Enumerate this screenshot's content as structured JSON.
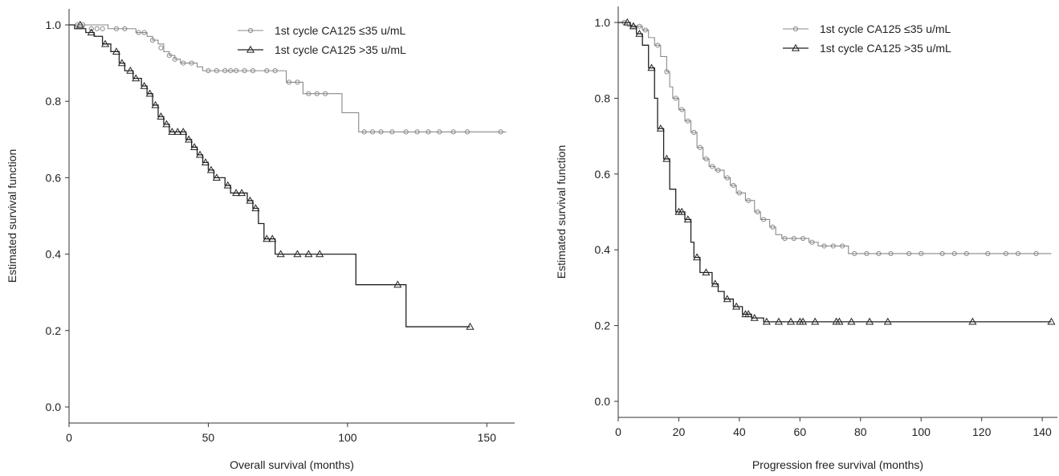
{
  "chart_data": [
    {
      "type": "line",
      "subtype": "kaplan-meier",
      "title": "",
      "xlabel": "Overall survival (months)",
      "ylabel": "Estimated survival function",
      "xlim": [
        0,
        160
      ],
      "ylim": [
        0,
        1.0
      ],
      "xticks": [
        0,
        50,
        100,
        150
      ],
      "yticks": [
        0.0,
        0.2,
        0.4,
        0.6,
        0.8,
        1.0
      ],
      "xtick_labels": [
        "0",
        "50",
        "100",
        "150"
      ],
      "ytick_labels": [
        "0.0",
        "0.2",
        "0.4",
        "0.6",
        "0.8",
        "1.0"
      ],
      "grid": false,
      "legend_position": "top-right",
      "series": [
        {
          "name": "1st cycle CA125 ≤35 u/mL",
          "marker": "circle",
          "steps": [
            [
              0,
              1.0
            ],
            [
              14,
              1.0
            ],
            [
              14,
              0.99
            ],
            [
              24,
              0.99
            ],
            [
              24,
              0.98
            ],
            [
              28,
              0.98
            ],
            [
              28,
              0.97
            ],
            [
              30,
              0.96
            ],
            [
              32,
              0.95
            ],
            [
              34,
              0.93
            ],
            [
              36,
              0.92
            ],
            [
              38,
              0.91
            ],
            [
              40,
              0.9
            ],
            [
              46,
              0.9
            ],
            [
              46,
              0.89
            ],
            [
              48,
              0.88
            ],
            [
              78,
              0.88
            ],
            [
              78,
              0.85
            ],
            [
              84,
              0.85
            ],
            [
              84,
              0.82
            ],
            [
              98,
              0.82
            ],
            [
              98,
              0.77
            ],
            [
              104,
              0.77
            ],
            [
              104,
              0.72
            ],
            [
              157,
              0.72
            ]
          ],
          "censored": [
            [
              3,
              1.0
            ],
            [
              5,
              1.0
            ],
            [
              8,
              0.99
            ],
            [
              10,
              0.99
            ],
            [
              12,
              0.99
            ],
            [
              17,
              0.99
            ],
            [
              20,
              0.99
            ],
            [
              25,
              0.98
            ],
            [
              27,
              0.98
            ],
            [
              30,
              0.96
            ],
            [
              33,
              0.94
            ],
            [
              36,
              0.92
            ],
            [
              38,
              0.91
            ],
            [
              41,
              0.9
            ],
            [
              44,
              0.9
            ],
            [
              50,
              0.88
            ],
            [
              53,
              0.88
            ],
            [
              56,
              0.88
            ],
            [
              58,
              0.88
            ],
            [
              60,
              0.88
            ],
            [
              63,
              0.88
            ],
            [
              66,
              0.88
            ],
            [
              71,
              0.88
            ],
            [
              74,
              0.88
            ],
            [
              79,
              0.85
            ],
            [
              82,
              0.85
            ],
            [
              86,
              0.82
            ],
            [
              89,
              0.82
            ],
            [
              92,
              0.82
            ],
            [
              106,
              0.72
            ],
            [
              109,
              0.72
            ],
            [
              112,
              0.72
            ],
            [
              116,
              0.72
            ],
            [
              121,
              0.72
            ],
            [
              125,
              0.72
            ],
            [
              129,
              0.72
            ],
            [
              133,
              0.72
            ],
            [
              138,
              0.72
            ],
            [
              143,
              0.72
            ],
            [
              155,
              0.72
            ]
          ]
        },
        {
          "name": "1st cycle CA125 >35 u/mL",
          "marker": "triangle",
          "steps": [
            [
              0,
              1.0
            ],
            [
              2,
              1.0
            ],
            [
              2,
              0.99
            ],
            [
              6,
              0.98
            ],
            [
              9,
              0.97
            ],
            [
              12,
              0.95
            ],
            [
              15,
              0.93
            ],
            [
              18,
              0.9
            ],
            [
              20,
              0.88
            ],
            [
              23,
              0.86
            ],
            [
              26,
              0.84
            ],
            [
              28,
              0.82
            ],
            [
              30,
              0.79
            ],
            [
              32,
              0.76
            ],
            [
              34,
              0.74
            ],
            [
              36,
              0.72
            ],
            [
              42,
              0.72
            ],
            [
              42,
              0.7
            ],
            [
              44,
              0.68
            ],
            [
              46,
              0.66
            ],
            [
              48,
              0.64
            ],
            [
              50,
              0.62
            ],
            [
              52,
              0.6
            ],
            [
              56,
              0.58
            ],
            [
              58,
              0.56
            ],
            [
              64,
              0.56
            ],
            [
              64,
              0.54
            ],
            [
              66,
              0.52
            ],
            [
              68,
              0.48
            ],
            [
              70,
              0.44
            ],
            [
              74,
              0.44
            ],
            [
              74,
              0.4
            ],
            [
              103,
              0.4
            ],
            [
              103,
              0.32
            ],
            [
              121,
              0.32
            ],
            [
              121,
              0.21
            ],
            [
              144,
              0.21
            ]
          ],
          "censored": [
            [
              4,
              1.0
            ],
            [
              8,
              0.98
            ],
            [
              13,
              0.95
            ],
            [
              17,
              0.93
            ],
            [
              19,
              0.9
            ],
            [
              22,
              0.88
            ],
            [
              24,
              0.86
            ],
            [
              27,
              0.84
            ],
            [
              29,
              0.82
            ],
            [
              31,
              0.79
            ],
            [
              33,
              0.76
            ],
            [
              35,
              0.74
            ],
            [
              37,
              0.72
            ],
            [
              39,
              0.72
            ],
            [
              41,
              0.72
            ],
            [
              43,
              0.7
            ],
            [
              45,
              0.68
            ],
            [
              47,
              0.66
            ],
            [
              49,
              0.64
            ],
            [
              51,
              0.62
            ],
            [
              53,
              0.6
            ],
            [
              57,
              0.58
            ],
            [
              60,
              0.56
            ],
            [
              62,
              0.56
            ],
            [
              65,
              0.54
            ],
            [
              67,
              0.52
            ],
            [
              71,
              0.44
            ],
            [
              73,
              0.44
            ],
            [
              76,
              0.4
            ],
            [
              82,
              0.4
            ],
            [
              86,
              0.4
            ],
            [
              90,
              0.4
            ],
            [
              118,
              0.32
            ],
            [
              144,
              0.21
            ]
          ]
        }
      ]
    },
    {
      "type": "line",
      "subtype": "kaplan-meier",
      "title": "",
      "xlabel": "Progression free survival (months)",
      "ylabel": "Estimated survival function",
      "xlim": [
        0,
        145
      ],
      "ylim": [
        0,
        1.0
      ],
      "xticks": [
        0,
        20,
        40,
        60,
        80,
        100,
        120,
        140
      ],
      "yticks": [
        0.0,
        0.2,
        0.4,
        0.6,
        0.8,
        1.0
      ],
      "xtick_labels": [
        "0",
        "20",
        "40",
        "60",
        "80",
        "100",
        "120",
        "140"
      ],
      "ytick_labels": [
        "0.0",
        "0.2",
        "0.4",
        "0.6",
        "0.8",
        "1.0"
      ],
      "grid": false,
      "legend_position": "top-right",
      "series": [
        {
          "name": "1st cycle CA125 ≤35 u/mL",
          "marker": "circle",
          "steps": [
            [
              0,
              1.0
            ],
            [
              3,
              1.0
            ],
            [
              3,
              0.99
            ],
            [
              6,
              0.99
            ],
            [
              8,
              0.98
            ],
            [
              10,
              0.96
            ],
            [
              12,
              0.94
            ],
            [
              14,
              0.91
            ],
            [
              16,
              0.87
            ],
            [
              17,
              0.83
            ],
            [
              18,
              0.8
            ],
            [
              20,
              0.77
            ],
            [
              22,
              0.74
            ],
            [
              24,
              0.71
            ],
            [
              26,
              0.67
            ],
            [
              28,
              0.64
            ],
            [
              30,
              0.62
            ],
            [
              32,
              0.61
            ],
            [
              35,
              0.59
            ],
            [
              37,
              0.57
            ],
            [
              39,
              0.55
            ],
            [
              42,
              0.53
            ],
            [
              45,
              0.5
            ],
            [
              47,
              0.48
            ],
            [
              50,
              0.46
            ],
            [
              52,
              0.44
            ],
            [
              54,
              0.43
            ],
            [
              63,
              0.43
            ],
            [
              63,
              0.42
            ],
            [
              66,
              0.42
            ],
            [
              66,
              0.41
            ],
            [
              76,
              0.41
            ],
            [
              76,
              0.39
            ],
            [
              143,
              0.39
            ]
          ],
          "censored": [
            [
              2,
              1.0
            ],
            [
              5,
              0.99
            ],
            [
              7,
              0.99
            ],
            [
              9,
              0.98
            ],
            [
              13,
              0.94
            ],
            [
              16,
              0.87
            ],
            [
              19,
              0.8
            ],
            [
              21,
              0.77
            ],
            [
              23,
              0.74
            ],
            [
              25,
              0.71
            ],
            [
              27,
              0.67
            ],
            [
              29,
              0.64
            ],
            [
              31,
              0.62
            ],
            [
              33,
              0.61
            ],
            [
              36,
              0.59
            ],
            [
              38,
              0.57
            ],
            [
              40,
              0.55
            ],
            [
              43,
              0.53
            ],
            [
              46,
              0.5
            ],
            [
              48,
              0.48
            ],
            [
              51,
              0.46
            ],
            [
              55,
              0.43
            ],
            [
              58,
              0.43
            ],
            [
              61,
              0.43
            ],
            [
              64,
              0.42
            ],
            [
              68,
              0.41
            ],
            [
              71,
              0.41
            ],
            [
              74,
              0.41
            ],
            [
              78,
              0.39
            ],
            [
              82,
              0.39
            ],
            [
              86,
              0.39
            ],
            [
              90,
              0.39
            ],
            [
              96,
              0.39
            ],
            [
              100,
              0.39
            ],
            [
              107,
              0.39
            ],
            [
              111,
              0.39
            ],
            [
              115,
              0.39
            ],
            [
              122,
              0.39
            ],
            [
              128,
              0.39
            ],
            [
              132,
              0.39
            ],
            [
              138,
              0.39
            ]
          ]
        },
        {
          "name": "1st cycle CA125 >35 u/mL",
          "marker": "triangle",
          "steps": [
            [
              0,
              1.0
            ],
            [
              4,
              1.0
            ],
            [
              4,
              0.99
            ],
            [
              6,
              0.97
            ],
            [
              8,
              0.94
            ],
            [
              10,
              0.88
            ],
            [
              12,
              0.8
            ],
            [
              13,
              0.72
            ],
            [
              15,
              0.64
            ],
            [
              17,
              0.56
            ],
            [
              19,
              0.5
            ],
            [
              22,
              0.48
            ],
            [
              24,
              0.42
            ],
            [
              25,
              0.38
            ],
            [
              27,
              0.34
            ],
            [
              31,
              0.31
            ],
            [
              33,
              0.29
            ],
            [
              35,
              0.27
            ],
            [
              38,
              0.25
            ],
            [
              41,
              0.23
            ],
            [
              44,
              0.22
            ],
            [
              48,
              0.21
            ],
            [
              143,
              0.21
            ]
          ],
          "censored": [
            [
              3,
              1.0
            ],
            [
              5,
              0.99
            ],
            [
              7,
              0.97
            ],
            [
              11,
              0.88
            ],
            [
              14,
              0.72
            ],
            [
              16,
              0.64
            ],
            [
              20,
              0.5
            ],
            [
              21,
              0.5
            ],
            [
              23,
              0.48
            ],
            [
              26,
              0.38
            ],
            [
              29,
              0.34
            ],
            [
              32,
              0.31
            ],
            [
              36,
              0.27
            ],
            [
              39,
              0.25
            ],
            [
              42,
              0.23
            ],
            [
              43,
              0.23
            ],
            [
              45,
              0.22
            ],
            [
              49,
              0.21
            ],
            [
              53,
              0.21
            ],
            [
              57,
              0.21
            ],
            [
              60,
              0.21
            ],
            [
              61,
              0.21
            ],
            [
              65,
              0.21
            ],
            [
              72,
              0.21
            ],
            [
              73,
              0.21
            ],
            [
              77,
              0.21
            ],
            [
              83,
              0.21
            ],
            [
              89,
              0.21
            ],
            [
              117,
              0.21
            ],
            [
              143,
              0.21
            ]
          ]
        }
      ]
    }
  ]
}
